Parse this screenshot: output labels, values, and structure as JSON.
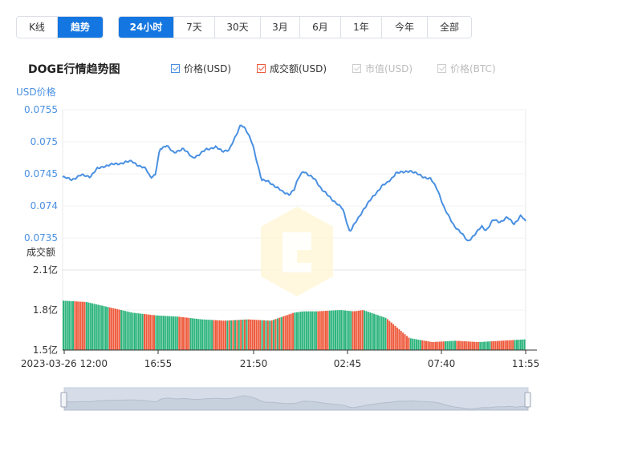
{
  "range_tabs_left": [
    {
      "label": "K线",
      "active": false
    },
    {
      "label": "趋势",
      "active": true
    }
  ],
  "range_tabs_right": [
    {
      "label": "24小时",
      "active": true
    },
    {
      "label": "7天",
      "active": false
    },
    {
      "label": "30天",
      "active": false
    },
    {
      "label": "3月",
      "active": false
    },
    {
      "label": "6月",
      "active": false
    },
    {
      "label": "1年",
      "active": false
    },
    {
      "label": "今年",
      "active": false
    },
    {
      "label": "全部",
      "active": false
    }
  ],
  "legend": [
    {
      "label": "价格(USD)",
      "checked": true,
      "color": "#4a90e2"
    },
    {
      "label": "成交额(USD)",
      "checked": true,
      "color": "#ee5a3c"
    },
    {
      "label": "市值(USD)",
      "checked": false,
      "color": "#cccccc"
    },
    {
      "label": "价格(BTC)",
      "checked": false,
      "color": "#cccccc"
    }
  ],
  "colors": {
    "price_line": "#4a90e2",
    "vol_up": "#2db47d",
    "vol_down": "#ee5a3c",
    "axis_blue": "#4a90e2",
    "navigator": "#d6dde8"
  },
  "chart_data": {
    "type": "line",
    "title": "DOGE行情趋势图",
    "price_axis": {
      "label": "USD价格",
      "ticks": [
        "0.0755",
        "0.075",
        "0.0745",
        "0.074",
        "0.0735"
      ],
      "ylim": [
        0.0735,
        0.0755
      ]
    },
    "volume_axis": {
      "label": "成交额",
      "ticks": [
        "2.1亿",
        "1.8亿",
        "1.5亿"
      ],
      "ylim": [
        1.5,
        2.1
      ],
      "unit": "亿"
    },
    "x_ticks": [
      "2023-03-26 12:00",
      "16:55",
      "21:50",
      "02:45",
      "07:40",
      "11:55"
    ],
    "price_series": {
      "name": "价格(USD)",
      "x_fraction": [
        0,
        0.02,
        0.04,
        0.06,
        0.075,
        0.09,
        0.11,
        0.13,
        0.15,
        0.165,
        0.18,
        0.19,
        0.2,
        0.21,
        0.225,
        0.24,
        0.26,
        0.28,
        0.295,
        0.31,
        0.33,
        0.345,
        0.36,
        0.375,
        0.385,
        0.395,
        0.41,
        0.43,
        0.445,
        0.46,
        0.475,
        0.49,
        0.5,
        0.51,
        0.52,
        0.53,
        0.545,
        0.56,
        0.575,
        0.59,
        0.605,
        0.62,
        0.64,
        0.65,
        0.66,
        0.675,
        0.69,
        0.7,
        0.71,
        0.72,
        0.735,
        0.75,
        0.765,
        0.78,
        0.795,
        0.81,
        0.825,
        0.835,
        0.845,
        0.86,
        0.875,
        0.89,
        0.905,
        0.915,
        0.93,
        0.945,
        0.96,
        0.975,
        0.99,
        1.0
      ],
      "values": [
        0.07445,
        0.07441,
        0.07448,
        0.07446,
        0.07458,
        0.07462,
        0.07465,
        0.07467,
        0.0747,
        0.07462,
        0.07458,
        0.07445,
        0.07448,
        0.07488,
        0.07495,
        0.07482,
        0.0749,
        0.07475,
        0.0748,
        0.07488,
        0.07492,
        0.07485,
        0.07488,
        0.0751,
        0.07528,
        0.0752,
        0.07497,
        0.0744,
        0.07438,
        0.0743,
        0.07422,
        0.07418,
        0.07425,
        0.07445,
        0.07455,
        0.07448,
        0.07442,
        0.07425,
        0.07415,
        0.07405,
        0.07395,
        0.0736,
        0.07382,
        0.07395,
        0.07405,
        0.07418,
        0.07432,
        0.07435,
        0.07442,
        0.07452,
        0.07452,
        0.07455,
        0.0745,
        0.07445,
        0.07442,
        0.07425,
        0.07395,
        0.07382,
        0.0737,
        0.07358,
        0.07345,
        0.07355,
        0.07368,
        0.07362,
        0.07378,
        0.07375,
        0.07382,
        0.07372,
        0.07385,
        0.07375
      ]
    },
    "volume_series": {
      "name": "成交额(USD)",
      "x_fraction": [
        0,
        0.05,
        0.1,
        0.15,
        0.2,
        0.25,
        0.3,
        0.35,
        0.4,
        0.45,
        0.5,
        0.52,
        0.55,
        0.6,
        0.63,
        0.65,
        0.7,
        0.75,
        0.8,
        0.85,
        0.9,
        0.95,
        1.0
      ],
      "values": [
        1.87,
        1.86,
        1.82,
        1.78,
        1.76,
        1.75,
        1.73,
        1.72,
        1.73,
        1.72,
        1.78,
        1.79,
        1.79,
        1.8,
        1.79,
        1.8,
        1.74,
        1.59,
        1.56,
        1.57,
        1.56,
        1.57,
        1.58
      ]
    }
  }
}
